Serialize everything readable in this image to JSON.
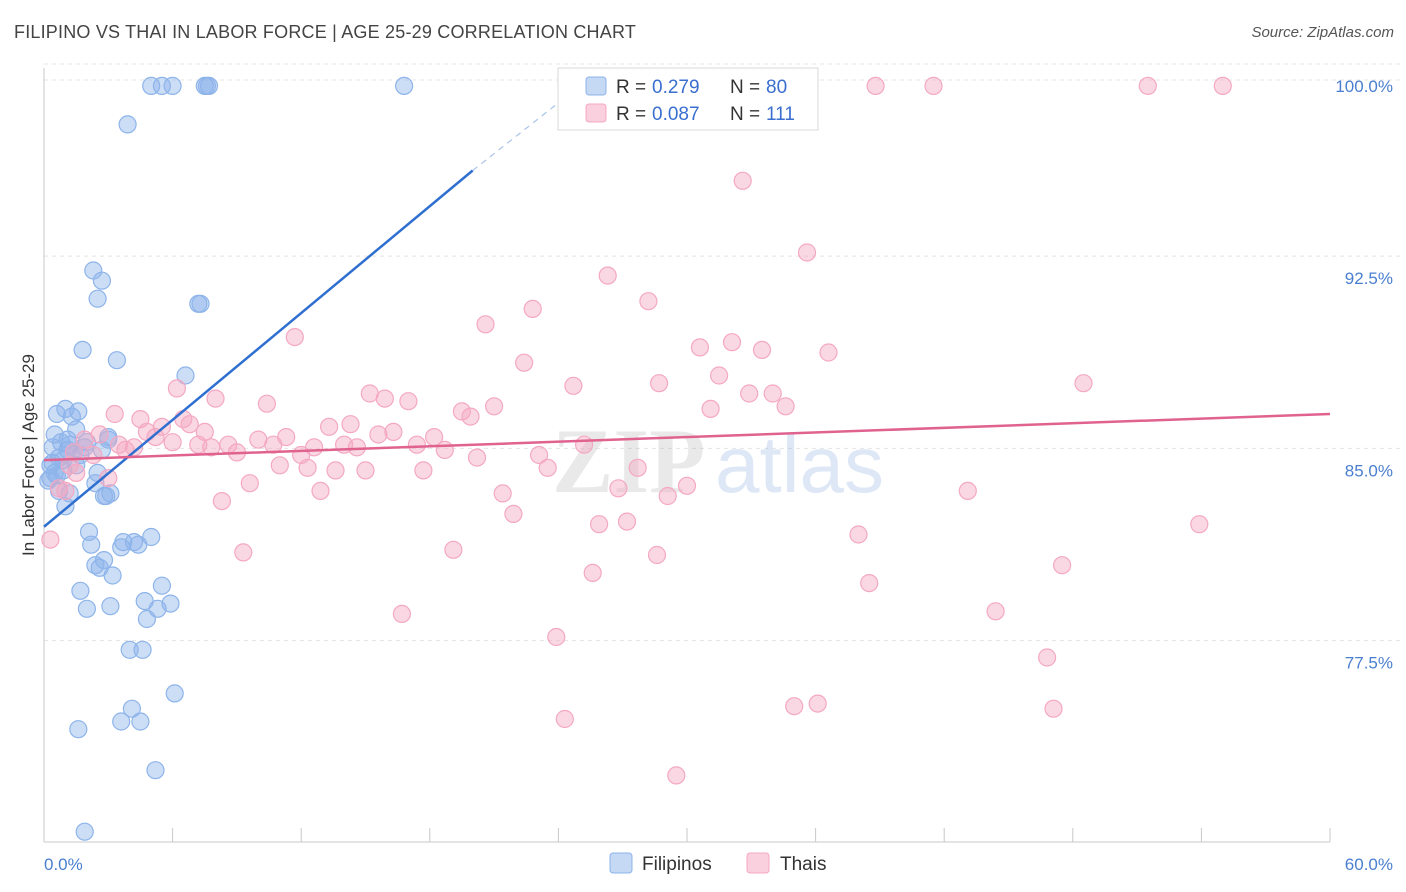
{
  "title": "FILIPINO VS THAI IN LABOR FORCE | AGE 25-29 CORRELATION CHART",
  "source": "Source: ZipAtlas.com",
  "watermark": {
    "zip": "ZIP",
    "atlas": "atlas"
  },
  "chart_data": {
    "type": "scatter",
    "title": "FILIPINO VS THAI IN LABOR FORCE | AGE 25-29 CORRELATION CHART",
    "xlabel": "",
    "ylabel": "In Labor Force | Age 25-29",
    "xlim": [
      0,
      60
    ],
    "ylim": [
      70.5,
      100.7
    ],
    "x_tick_labels": [
      "0.0%",
      "60.0%"
    ],
    "y_ticks": [
      77.5,
      85.0,
      92.5,
      100.0
    ],
    "y_tick_labels": [
      "77.5%",
      "85.0%",
      "92.5%",
      "100.0%"
    ],
    "grid": true,
    "legend_position": "top-center",
    "series": [
      {
        "name": "Filipinos",
        "color": "#8db4ea",
        "line_color": "#2f6fd0",
        "R": "0.279",
        "N": "80",
        "trend": {
          "x0": 0,
          "y0": 82.8,
          "x1": 20,
          "y1": 96.7,
          "dash_to_x": 25,
          "dash_to_y": 100.0
        },
        "points": [
          [
            0.2,
            84.6
          ],
          [
            0.3,
            85.2
          ],
          [
            0.4,
            85.9
          ],
          [
            0.5,
            84.9
          ],
          [
            0.5,
            86.4
          ],
          [
            0.6,
            87.2
          ],
          [
            0.7,
            85.5
          ],
          [
            0.7,
            84.2
          ],
          [
            0.8,
            86.1
          ],
          [
            0.9,
            85.0
          ],
          [
            1.0,
            87.4
          ],
          [
            1.0,
            83.6
          ],
          [
            1.1,
            85.8
          ],
          [
            1.2,
            86.0
          ],
          [
            1.2,
            84.1
          ],
          [
            1.3,
            87.1
          ],
          [
            1.4,
            85.7
          ],
          [
            1.5,
            86.6
          ],
          [
            1.6,
            87.3
          ],
          [
            1.7,
            85.6
          ],
          [
            1.8,
            89.7
          ],
          [
            1.9,
            85.9
          ],
          [
            2.0,
            86.1
          ],
          [
            2.1,
            82.6
          ],
          [
            2.2,
            82.1
          ],
          [
            2.3,
            92.8
          ],
          [
            2.4,
            84.5
          ],
          [
            2.5,
            91.7
          ],
          [
            2.6,
            81.2
          ],
          [
            2.7,
            92.4
          ],
          [
            2.8,
            81.5
          ],
          [
            2.9,
            84.0
          ],
          [
            3.0,
            86.2
          ],
          [
            3.0,
            86.3
          ],
          [
            3.2,
            80.9
          ],
          [
            3.4,
            89.3
          ],
          [
            3.6,
            82.0
          ],
          [
            3.7,
            82.2
          ],
          [
            3.9,
            98.5
          ],
          [
            4.0,
            78.0
          ],
          [
            4.1,
            75.7
          ],
          [
            4.2,
            82.2
          ],
          [
            4.4,
            82.1
          ],
          [
            4.5,
            75.2
          ],
          [
            4.6,
            78.0
          ],
          [
            4.7,
            79.9
          ],
          [
            4.8,
            79.2
          ],
          [
            5.0,
            82.4
          ],
          [
            5.2,
            73.3
          ],
          [
            5.3,
            79.6
          ],
          [
            5.5,
            80.5
          ],
          [
            5.9,
            79.8
          ],
          [
            6.1,
            76.3
          ],
          [
            6.6,
            88.7
          ],
          [
            7.2,
            91.5
          ],
          [
            7.3,
            91.5
          ],
          [
            7.5,
            100.0
          ],
          [
            7.6,
            100.0
          ],
          [
            7.7,
            100.0
          ],
          [
            5.0,
            100.0
          ],
          [
            5.5,
            100.0
          ],
          [
            6.0,
            100.0
          ],
          [
            16.8,
            100.0
          ],
          [
            1.6,
            74.9
          ],
          [
            1.9,
            70.9
          ],
          [
            2.0,
            79.6
          ],
          [
            1.7,
            80.3
          ],
          [
            2.4,
            81.3
          ],
          [
            2.5,
            84.9
          ],
          [
            3.1,
            79.7
          ],
          [
            3.6,
            75.2
          ],
          [
            0.6,
            84.8
          ],
          [
            1.1,
            86.2
          ],
          [
            2.7,
            85.8
          ],
          [
            3.1,
            84.1
          ],
          [
            0.9,
            85.4
          ],
          [
            1.5,
            85.2
          ],
          [
            0.4,
            85.3
          ],
          [
            2.8,
            84.0
          ],
          [
            0.3,
            84.7
          ]
        ]
      },
      {
        "name": "Thais",
        "color": "#f4a8c2",
        "line_color": "#e0628f",
        "R": "0.087",
        "N": "111",
        "trend": {
          "x0": 0,
          "y0": 85.4,
          "x1": 60,
          "y1": 87.2
        },
        "points": [
          [
            0.3,
            82.3
          ],
          [
            1.0,
            84.2
          ],
          [
            1.2,
            85.2
          ],
          [
            1.5,
            84.9
          ],
          [
            1.9,
            86.2
          ],
          [
            2.3,
            85.6
          ],
          [
            2.6,
            86.4
          ],
          [
            3.0,
            84.7
          ],
          [
            3.3,
            87.2
          ],
          [
            3.5,
            86.0
          ],
          [
            3.8,
            85.8
          ],
          [
            4.2,
            85.9
          ],
          [
            4.5,
            87.0
          ],
          [
            4.8,
            86.5
          ],
          [
            5.2,
            86.3
          ],
          [
            5.5,
            86.7
          ],
          [
            6.0,
            86.1
          ],
          [
            6.2,
            88.2
          ],
          [
            6.5,
            87.0
          ],
          [
            6.8,
            86.8
          ],
          [
            7.2,
            86.0
          ],
          [
            7.5,
            86.5
          ],
          [
            7.8,
            85.9
          ],
          [
            8.0,
            87.8
          ],
          [
            8.3,
            83.8
          ],
          [
            8.6,
            86.0
          ],
          [
            9.0,
            85.7
          ],
          [
            9.3,
            81.8
          ],
          [
            9.6,
            84.5
          ],
          [
            10.0,
            86.2
          ],
          [
            10.4,
            87.6
          ],
          [
            10.7,
            86.0
          ],
          [
            11.0,
            85.2
          ],
          [
            11.3,
            86.3
          ],
          [
            11.7,
            90.2
          ],
          [
            12.0,
            85.6
          ],
          [
            12.3,
            85.1
          ],
          [
            12.6,
            85.9
          ],
          [
            12.9,
            84.2
          ],
          [
            13.3,
            86.7
          ],
          [
            13.6,
            85.0
          ],
          [
            14.0,
            86.0
          ],
          [
            14.3,
            86.8
          ],
          [
            14.6,
            85.9
          ],
          [
            15.0,
            85.0
          ],
          [
            15.2,
            88.0
          ],
          [
            15.6,
            86.4
          ],
          [
            15.9,
            87.8
          ],
          [
            16.3,
            86.5
          ],
          [
            16.7,
            79.4
          ],
          [
            17.0,
            87.7
          ],
          [
            17.4,
            86.0
          ],
          [
            17.7,
            85.0
          ],
          [
            18.2,
            86.3
          ],
          [
            18.7,
            85.8
          ],
          [
            19.1,
            81.9
          ],
          [
            19.5,
            87.3
          ],
          [
            19.9,
            87.1
          ],
          [
            20.2,
            85.5
          ],
          [
            20.6,
            90.7
          ],
          [
            21.0,
            87.5
          ],
          [
            21.4,
            84.1
          ],
          [
            21.9,
            83.3
          ],
          [
            22.4,
            89.2
          ],
          [
            22.8,
            91.3
          ],
          [
            23.1,
            85.6
          ],
          [
            23.5,
            85.1
          ],
          [
            23.9,
            78.5
          ],
          [
            24.3,
            75.3
          ],
          [
            24.7,
            88.3
          ],
          [
            25.2,
            86.0
          ],
          [
            25.6,
            81.0
          ],
          [
            25.9,
            82.9
          ],
          [
            26.3,
            92.6
          ],
          [
            26.8,
            84.3
          ],
          [
            27.2,
            83.0
          ],
          [
            27.7,
            85.1
          ],
          [
            28.2,
            91.6
          ],
          [
            28.6,
            81.7
          ],
          [
            29.1,
            84.0
          ],
          [
            29.5,
            73.1
          ],
          [
            30.0,
            84.4
          ],
          [
            30.6,
            89.8
          ],
          [
            31.1,
            87.4
          ],
          [
            31.5,
            88.7
          ],
          [
            32.1,
            90.0
          ],
          [
            32.6,
            96.3
          ],
          [
            32.9,
            88.0
          ],
          [
            33.5,
            89.7
          ],
          [
            34.0,
            88.0
          ],
          [
            34.6,
            87.5
          ],
          [
            35.0,
            75.8
          ],
          [
            36.1,
            75.9
          ],
          [
            35.6,
            93.5
          ],
          [
            36.6,
            89.6
          ],
          [
            38.0,
            82.5
          ],
          [
            38.5,
            80.6
          ],
          [
            38.8,
            100.0
          ],
          [
            41.5,
            100.0
          ],
          [
            43.1,
            84.2
          ],
          [
            44.4,
            79.5
          ],
          [
            46.8,
            77.7
          ],
          [
            47.1,
            75.7
          ],
          [
            47.5,
            81.3
          ],
          [
            48.5,
            88.4
          ],
          [
            51.5,
            100.0
          ],
          [
            53.9,
            82.9
          ],
          [
            55.0,
            100.0
          ],
          [
            28.7,
            88.4
          ],
          [
            1.4,
            85.7
          ],
          [
            0.7,
            84.3
          ]
        ]
      }
    ]
  }
}
